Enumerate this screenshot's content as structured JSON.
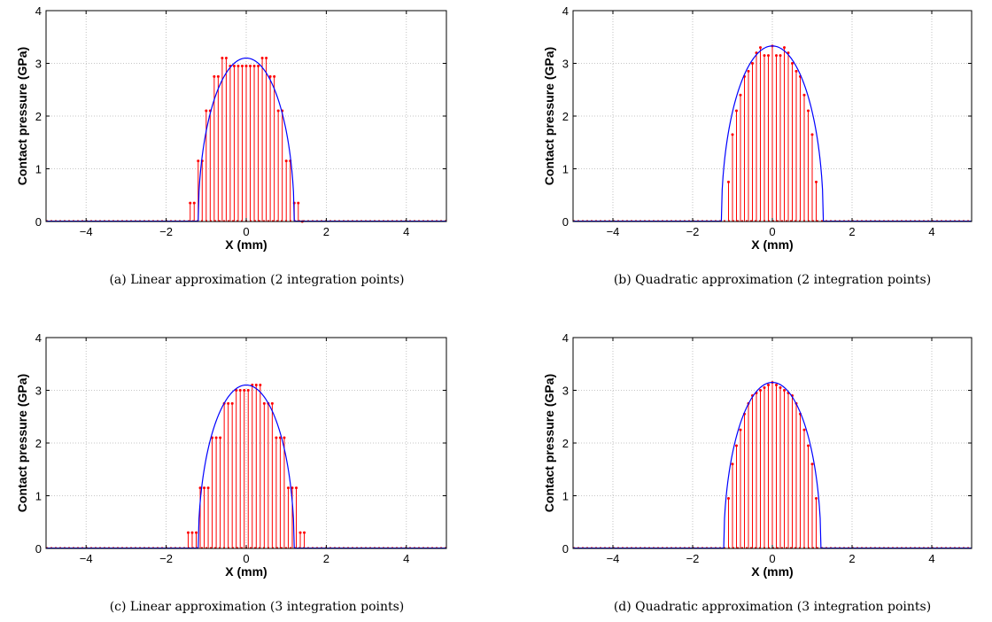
{
  "chart_data": [
    {
      "type": "line",
      "panel_id": "a",
      "caption": "(a) Linear approximation (2 integration points)",
      "xlabel": "X (mm)",
      "ylabel": "Contact pressure (GPa)",
      "xlim": [
        -5,
        5
      ],
      "ylim": [
        0,
        4
      ],
      "xticks": [
        -4,
        -2,
        0,
        2,
        4
      ],
      "yticks": [
        0,
        1,
        2,
        3,
        4
      ],
      "grid": true,
      "curve": {
        "peak": 3.1,
        "half_width": 1.2,
        "color": "#0000ff"
      },
      "stems": {
        "color": "#ff0000",
        "x": [
          -1.4,
          -1.3,
          -1.2,
          -1.1,
          -1.0,
          -0.9,
          -0.8,
          -0.7,
          -0.6,
          -0.5,
          -0.4,
          -0.3,
          -0.2,
          -0.1,
          0.0,
          0.1,
          0.2,
          0.3,
          0.4,
          0.5,
          0.6,
          0.7,
          0.8,
          0.9,
          1.0,
          1.1,
          1.2,
          1.3,
          1.4
        ],
        "y": [
          0.35,
          0.35,
          1.15,
          1.15,
          2.1,
          2.1,
          2.75,
          2.75,
          3.1,
          3.1,
          2.95,
          2.95,
          2.95,
          2.95,
          2.95,
          2.95,
          2.95,
          2.95,
          3.1,
          3.1,
          2.75,
          2.75,
          2.1,
          2.1,
          1.15,
          1.15,
          0.35,
          0.35,
          0.0
        ]
      }
    },
    {
      "type": "line",
      "panel_id": "b",
      "caption": "(b) Quadratic approximation (2 integration points)",
      "xlabel": "X (mm)",
      "ylabel": "Contact pressure (GPa)",
      "xlim": [
        -5,
        5
      ],
      "ylim": [
        0,
        4
      ],
      "xticks": [
        -4,
        -2,
        0,
        2,
        4
      ],
      "yticks": [
        0,
        1,
        2,
        3,
        4
      ],
      "grid": true,
      "curve": {
        "peak": 3.33,
        "half_width": 1.28,
        "color": "#0000ff"
      },
      "stems": {
        "color": "#ff0000",
        "x": [
          -1.1,
          -1.0,
          -0.9,
          -0.8,
          -0.7,
          -0.6,
          -0.5,
          -0.4,
          -0.3,
          -0.2,
          -0.1,
          0.0,
          0.1,
          0.2,
          0.3,
          0.4,
          0.5,
          0.6,
          0.7,
          0.8,
          0.9,
          1.0,
          1.1
        ],
        "y": [
          0.75,
          1.65,
          2.1,
          2.4,
          2.75,
          2.85,
          3.0,
          3.2,
          3.3,
          3.15,
          3.15,
          3.33,
          3.15,
          3.15,
          3.3,
          3.2,
          3.0,
          2.85,
          2.75,
          2.4,
          2.1,
          1.65,
          0.75
        ]
      }
    },
    {
      "type": "line",
      "panel_id": "c",
      "caption": "(c) Linear approximation (3 integration points)",
      "xlabel": "X (mm)",
      "ylabel": "Contact pressure (GPa)",
      "xlim": [
        -5,
        5
      ],
      "ylim": [
        0,
        4
      ],
      "xticks": [
        -4,
        -2,
        0,
        2,
        4
      ],
      "yticks": [
        0,
        1,
        2,
        3,
        4
      ],
      "grid": true,
      "curve": {
        "peak": 3.1,
        "half_width": 1.2,
        "color": "#0000ff"
      },
      "stems": {
        "color": "#ff0000",
        "x": [
          -1.45,
          -1.35,
          -1.25,
          -1.15,
          -1.05,
          -0.95,
          -0.85,
          -0.75,
          -0.65,
          -0.55,
          -0.45,
          -0.35,
          -0.25,
          -0.15,
          -0.05,
          0.05,
          0.15,
          0.25,
          0.35,
          0.45,
          0.55,
          0.65,
          0.75,
          0.85,
          0.95,
          1.05,
          1.15,
          1.25,
          1.35,
          1.45
        ],
        "y": [
          0.3,
          0.3,
          0.3,
          1.15,
          1.15,
          1.15,
          2.1,
          2.1,
          2.1,
          2.75,
          2.75,
          2.75,
          3.0,
          3.0,
          3.0,
          3.0,
          3.1,
          3.1,
          3.1,
          2.75,
          2.75,
          2.75,
          2.1,
          2.1,
          2.1,
          1.15,
          1.15,
          1.15,
          0.3,
          0.3
        ]
      }
    },
    {
      "type": "line",
      "panel_id": "d",
      "caption": "(d) Quadratic approximation (3 integration points)",
      "xlabel": "X (mm)",
      "ylabel": "Contact pressure (GPa)",
      "xlim": [
        -5,
        5
      ],
      "ylim": [
        0,
        4
      ],
      "xticks": [
        -4,
        -2,
        0,
        2,
        4
      ],
      "yticks": [
        0,
        1,
        2,
        3,
        4
      ],
      "grid": true,
      "curve": {
        "peak": 3.15,
        "half_width": 1.22,
        "color": "#0000ff"
      },
      "stems": {
        "color": "#ff0000",
        "x": [
          -1.1,
          -1.0,
          -0.9,
          -0.8,
          -0.7,
          -0.6,
          -0.5,
          -0.4,
          -0.3,
          -0.2,
          -0.1,
          0.0,
          0.1,
          0.2,
          0.3,
          0.4,
          0.5,
          0.6,
          0.7,
          0.8,
          0.9,
          1.0,
          1.1
        ],
        "y": [
          0.95,
          1.6,
          1.95,
          2.25,
          2.55,
          2.75,
          2.9,
          2.95,
          3.0,
          3.05,
          3.1,
          3.15,
          3.1,
          3.05,
          3.0,
          2.95,
          2.9,
          2.75,
          2.55,
          2.25,
          1.95,
          1.6,
          0.95
        ]
      }
    }
  ]
}
